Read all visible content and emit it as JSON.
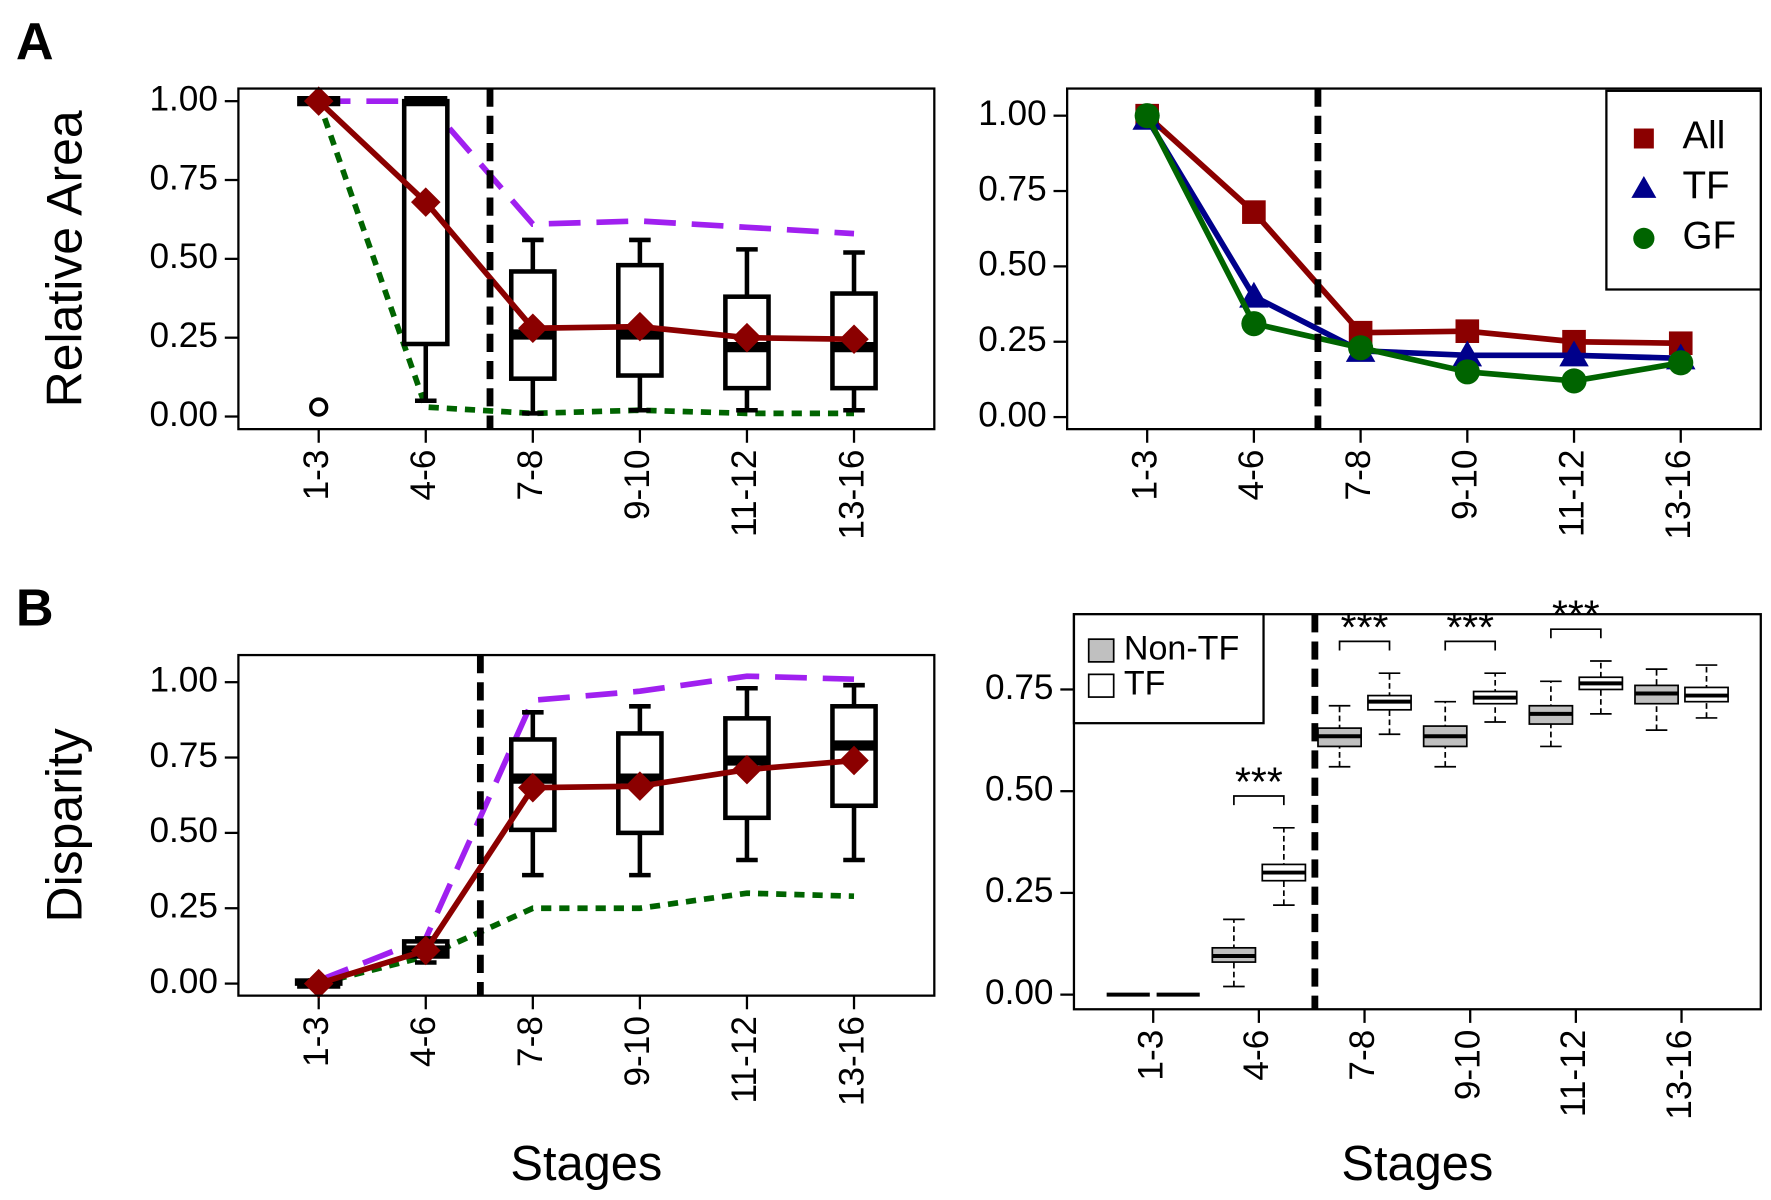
{
  "chart_data": [
    {
      "type": "box",
      "panel_label": "A",
      "ylabel": "Relative Area",
      "categories": [
        "1-3",
        "4-6",
        "7-8",
        "9-10",
        "11-12",
        "13-16"
      ],
      "ylim": [
        -0.04,
        1.04
      ],
      "yticks": [
        {
          "value": 0,
          "label": "0.00"
        },
        {
          "value": 0.25,
          "label": "0.25"
        },
        {
          "value": 0.5,
          "label": "0.50"
        },
        {
          "value": 0.75,
          "label": "0.75"
        },
        {
          "value": 1,
          "label": "1.00"
        }
      ],
      "divider": 2.6,
      "boxes": [
        {
          "min": 1,
          "q1": 1,
          "median": 1,
          "q3": 1,
          "max": 1,
          "outliers": [
            0.03
          ]
        },
        {
          "min": 0.05,
          "q1": 0.23,
          "median": 1,
          "q3": 1,
          "max": 1
        },
        {
          "min": 0.01,
          "q1": 0.12,
          "median": 0.26,
          "q3": 0.46,
          "max": 0.56
        },
        {
          "min": 0.02,
          "q1": 0.13,
          "median": 0.26,
          "q3": 0.48,
          "max": 0.56
        },
        {
          "min": 0.02,
          "q1": 0.09,
          "median": 0.22,
          "q3": 0.38,
          "max": 0.53
        },
        {
          "min": 0.02,
          "q1": 0.09,
          "median": 0.22,
          "q3": 0.39,
          "max": 0.52
        }
      ],
      "lines": [
        {
          "color": "#a020f0",
          "style": "dashed",
          "values": [
            1,
            1,
            0.61,
            0.62,
            0.6,
            0.58
          ]
        },
        {
          "color": "#006400",
          "style": "dotted",
          "values": [
            1,
            0.03,
            0.01,
            0.02,
            0.01,
            0.01
          ]
        },
        {
          "color": "#8b0000",
          "style": "solid",
          "marker": "diamond",
          "values": [
            1,
            0.68,
            0.28,
            0.285,
            0.25,
            0.245
          ]
        }
      ]
    },
    {
      "type": "line",
      "categories": [
        "1-3",
        "4-6",
        "7-8",
        "9-10",
        "11-12",
        "13-16"
      ],
      "ylim": [
        -0.04,
        1.09
      ],
      "yticks": [
        {
          "value": 0,
          "label": "0.00"
        },
        {
          "value": 0.25,
          "label": "0.25"
        },
        {
          "value": 0.5,
          "label": "0.50"
        },
        {
          "value": 0.75,
          "label": "0.75"
        },
        {
          "value": 1,
          "label": "1.00"
        }
      ],
      "divider": 2.6,
      "legend": "top-right",
      "series": [
        {
          "name": "All",
          "color": "#8b0000",
          "marker": "square",
          "values": [
            1,
            0.68,
            0.28,
            0.285,
            0.25,
            0.245
          ]
        },
        {
          "name": "TF",
          "color": "#00008b",
          "marker": "triangle",
          "values": [
            0.99,
            0.4,
            0.22,
            0.205,
            0.205,
            0.195
          ]
        },
        {
          "name": "GF",
          "color": "#006400",
          "marker": "circle",
          "values": [
            1,
            0.31,
            0.23,
            0.15,
            0.12,
            0.18
          ]
        }
      ]
    },
    {
      "type": "box",
      "panel_label": "B",
      "ylabel": "Disparity",
      "xlabel": "Stages",
      "categories": [
        "1-3",
        "4-6",
        "7-8",
        "9-10",
        "11-12",
        "13-16"
      ],
      "ylim": [
        -0.04,
        1.09
      ],
      "yticks": [
        {
          "value": 0,
          "label": "0.00"
        },
        {
          "value": 0.25,
          "label": "0.25"
        },
        {
          "value": 0.5,
          "label": "0.50"
        },
        {
          "value": 0.75,
          "label": "0.75"
        },
        {
          "value": 1,
          "label": "1.00"
        }
      ],
      "divider": 2.51,
      "boxes": [
        {
          "min": 0,
          "q1": 0,
          "median": 0,
          "q3": 0.01,
          "max": 0.01
        },
        {
          "min": 0.07,
          "q1": 0.09,
          "median": 0.11,
          "q3": 0.14,
          "max": 0.15
        },
        {
          "min": 0.36,
          "q1": 0.51,
          "median": 0.68,
          "q3": 0.81,
          "max": 0.9
        },
        {
          "min": 0.36,
          "q1": 0.5,
          "median": 0.68,
          "q3": 0.83,
          "max": 0.92
        },
        {
          "min": 0.41,
          "q1": 0.55,
          "median": 0.74,
          "q3": 0.88,
          "max": 0.98
        },
        {
          "min": 0.41,
          "q1": 0.59,
          "median": 0.79,
          "q3": 0.92,
          "max": 0.99
        }
      ],
      "lines": [
        {
          "color": "#a020f0",
          "style": "dashed",
          "values": [
            0.01,
            0.15,
            0.94,
            0.97,
            1.02,
            1.01
          ]
        },
        {
          "color": "#006400",
          "style": "dotted",
          "values": [
            0,
            0.09,
            0.25,
            0.25,
            0.3,
            0.29
          ]
        },
        {
          "color": "#8b0000",
          "style": "solid",
          "marker": "diamond",
          "values": [
            0,
            0.11,
            0.65,
            0.655,
            0.71,
            0.74
          ]
        }
      ]
    },
    {
      "type": "grouped-box",
      "xlabel": "Stages",
      "categories": [
        "1-3",
        "4-6",
        "7-8",
        "9-10",
        "11-12",
        "13-16"
      ],
      "ylim": [
        -0.036,
        0.935
      ],
      "yticks": [
        {
          "value": 0,
          "label": "0.00"
        },
        {
          "value": 0.25,
          "label": "0.25"
        },
        {
          "value": 0.5,
          "label": "0.50"
        },
        {
          "value": 0.75,
          "label": "0.75"
        }
      ],
      "divider": 2.53,
      "legend": "top-left",
      "series": [
        {
          "name": "Non-TF",
          "color": "#c0c0c0",
          "boxes": [
            {
              "min": 0,
              "q1": 0,
              "median": 0,
              "q3": 0,
              "max": 0
            },
            {
              "min": 0.02,
              "q1": 0.08,
              "median": 0.095,
              "q3": 0.115,
              "max": 0.185
            },
            {
              "min": 0.56,
              "q1": 0.61,
              "median": 0.635,
              "q3": 0.655,
              "max": 0.71
            },
            {
              "min": 0.56,
              "q1": 0.61,
              "median": 0.635,
              "q3": 0.66,
              "max": 0.72
            },
            {
              "min": 0.61,
              "q1": 0.665,
              "median": 0.69,
              "q3": 0.71,
              "max": 0.77
            },
            {
              "min": 0.65,
              "q1": 0.715,
              "median": 0.74,
              "q3": 0.76,
              "max": 0.8
            }
          ]
        },
        {
          "name": "TF",
          "color": "#ffffff",
          "boxes": [
            {
              "min": 0,
              "q1": 0,
              "median": 0,
              "q3": 0,
              "max": 0
            },
            {
              "min": 0.22,
              "q1": 0.28,
              "median": 0.3,
              "q3": 0.32,
              "max": 0.41
            },
            {
              "min": 0.64,
              "q1": 0.7,
              "median": 0.72,
              "q3": 0.735,
              "max": 0.79
            },
            {
              "min": 0.67,
              "q1": 0.715,
              "median": 0.73,
              "q3": 0.745,
              "max": 0.79
            },
            {
              "min": 0.69,
              "q1": 0.75,
              "median": 0.765,
              "q3": 0.78,
              "max": 0.82
            },
            {
              "min": 0.68,
              "q1": 0.72,
              "median": 0.735,
              "q3": 0.755,
              "max": 0.81
            }
          ]
        }
      ],
      "annotations": [
        {
          "category": "4-6",
          "text": "***"
        },
        {
          "category": "7-8",
          "text": "***"
        },
        {
          "category": "9-10",
          "text": "***"
        },
        {
          "category": "11-12",
          "text": "***"
        }
      ]
    }
  ]
}
